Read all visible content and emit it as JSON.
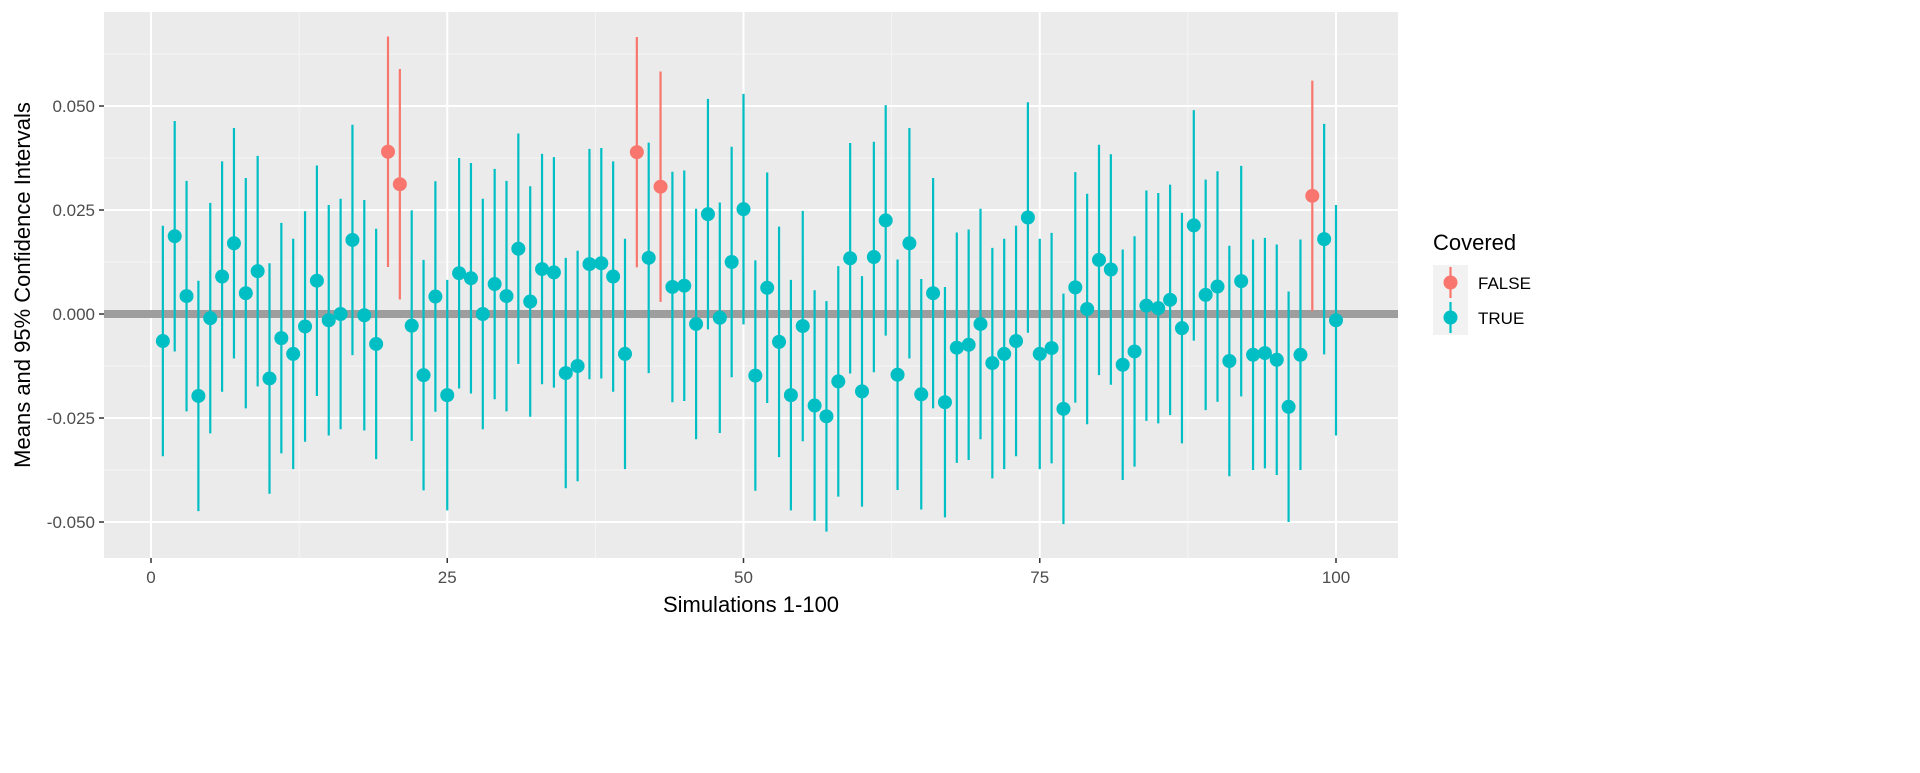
{
  "chart_data": {
    "type": "scatter",
    "subtype": "point-with-errorbars",
    "title": "",
    "xlabel": "Simulations 1-100",
    "ylabel": "Means and 95% Confidence Intervals",
    "xlim": [
      -4,
      105
    ],
    "ylim": [
      -0.058,
      0.073
    ],
    "x_ticks": [
      0,
      25,
      50,
      75,
      100
    ],
    "x_tick_labels": [
      "0",
      "25",
      "50",
      "75",
      "100"
    ],
    "y_ticks": [
      -0.05,
      -0.025,
      0,
      0.025,
      0.05
    ],
    "y_tick_labels": [
      "-0.050",
      "-0.025",
      "0.000",
      "0.025",
      "0.050"
    ],
    "grid": true,
    "reference_line": {
      "y": 0,
      "color": "#999999"
    },
    "ci_half_width": 0.0277,
    "legend": {
      "title": "Covered",
      "position": "right",
      "entries": [
        {
          "label": "FALSE",
          "color": "#F8766D"
        },
        {
          "label": "TRUE",
          "color": "#00BFC4"
        }
      ]
    },
    "x": [
      1,
      2,
      3,
      4,
      5,
      6,
      7,
      8,
      9,
      10,
      11,
      12,
      13,
      14,
      15,
      16,
      17,
      18,
      19,
      20,
      21,
      22,
      23,
      24,
      25,
      26,
      27,
      28,
      29,
      30,
      31,
      32,
      33,
      34,
      35,
      36,
      37,
      38,
      39,
      40,
      41,
      42,
      43,
      44,
      45,
      46,
      47,
      48,
      49,
      50,
      51,
      52,
      53,
      54,
      55,
      56,
      57,
      58,
      59,
      60,
      61,
      62,
      63,
      64,
      65,
      66,
      67,
      68,
      69,
      70,
      71,
      72,
      73,
      74,
      75,
      76,
      77,
      78,
      79,
      80,
      81,
      82,
      83,
      84,
      85,
      86,
      87,
      88,
      89,
      90,
      91,
      92,
      93,
      94,
      95,
      96,
      97,
      98,
      99,
      100
    ],
    "means": [
      -0.0065,
      0.0187,
      0.0043,
      -0.0197,
      -0.001,
      0.009,
      0.017,
      0.005,
      0.0103,
      -0.0155,
      -0.0058,
      -0.0096,
      -0.003,
      0.008,
      -0.0015,
      0.0,
      0.0178,
      -0.0003,
      -0.0072,
      0.039,
      0.0312,
      -0.0028,
      -0.0147,
      0.0042,
      -0.0195,
      0.0098,
      0.0086,
      0.0,
      0.0072,
      0.0043,
      0.0157,
      0.003,
      0.0108,
      0.01,
      -0.0142,
      -0.0125,
      0.012,
      0.0122,
      0.009,
      -0.0096,
      0.0389,
      0.0135,
      0.0306,
      0.0065,
      0.0068,
      -0.0024,
      0.024,
      -0.0009,
      0.0125,
      0.0252,
      -0.0148,
      0.0063,
      -0.0067,
      -0.0195,
      -0.0029,
      -0.022,
      -0.0246,
      -0.0162,
      0.0134,
      -0.0186,
      0.0137,
      0.0225,
      -0.0146,
      0.017,
      -0.0193,
      0.005,
      -0.0212,
      -0.0081,
      -0.0074,
      -0.0024,
      -0.0118,
      -0.0096,
      -0.0065,
      0.0232,
      -0.0096,
      -0.0082,
      -0.0228,
      0.0064,
      0.0012,
      0.013,
      0.0107,
      -0.0122,
      -0.009,
      0.002,
      0.0014,
      0.0034,
      -0.0034,
      0.0213,
      0.0046,
      0.0066,
      -0.0113,
      0.0079,
      -0.0098,
      -0.0094,
      -0.011,
      -0.0223,
      -0.0098,
      0.0284,
      0.018,
      -0.0015
    ],
    "covered_false": [
      20,
      21,
      41,
      43,
      98
    ]
  }
}
